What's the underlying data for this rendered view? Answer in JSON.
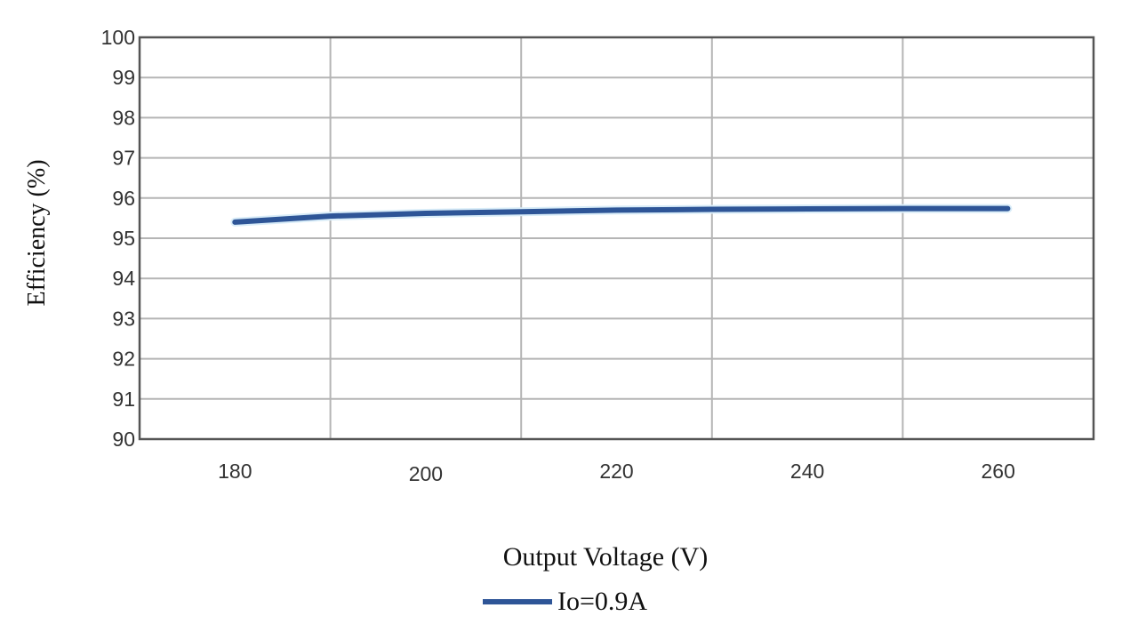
{
  "chart_data": {
    "type": "line",
    "title": "",
    "xlabel": "Output Voltage (V)",
    "ylabel": "Efficiency (%)",
    "xlim": [
      170,
      270
    ],
    "ylim": [
      90,
      100
    ],
    "x_ticks": [
      180,
      200,
      220,
      240,
      260
    ],
    "y_ticks": [
      90,
      91,
      92,
      93,
      94,
      95,
      96,
      97,
      98,
      99,
      100
    ],
    "x_gridlines": [
      190,
      210,
      230,
      250
    ],
    "grid": true,
    "legend_position": "bottom-center",
    "series": [
      {
        "name": "Io=0.9A",
        "color": "#2e5597",
        "x": [
          180,
          190,
          200,
          210,
          220,
          230,
          240,
          250,
          261
        ],
        "values": [
          95.4,
          95.55,
          95.62,
          95.66,
          95.7,
          95.72,
          95.73,
          95.74,
          95.74
        ]
      }
    ]
  },
  "labels": {
    "xlabel": "Output Voltage (V)",
    "ylabel": "Efficiency (%)",
    "legend": "Io=0.9A"
  }
}
